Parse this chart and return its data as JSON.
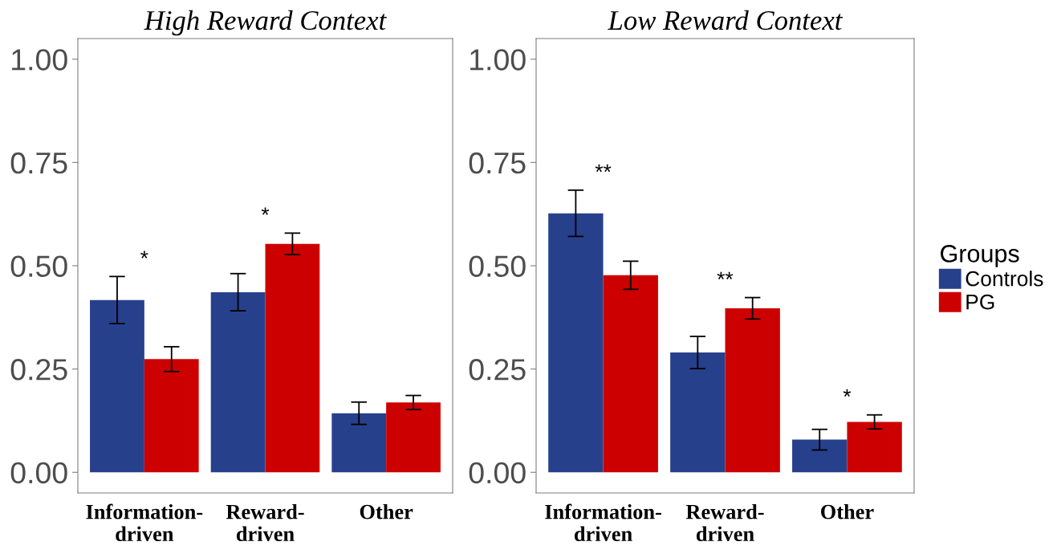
{
  "chart_data": [
    {
      "type": "bar",
      "title": "High Reward Context",
      "categories": [
        "Information-\ndriven",
        "Reward-\ndriven",
        "Other"
      ],
      "series": [
        {
          "color": "#27408b",
          "values": [
            0.417,
            0.436,
            0.143
          ],
          "errors": [
            0.057,
            0.045,
            0.027
          ]
        },
        {
          "color": "#cd0000",
          "values": [
            0.274,
            0.553,
            0.169
          ],
          "errors": [
            0.03,
            0.026,
            0.017
          ]
        }
      ],
      "ylim": [
        -0.05,
        1.05
      ],
      "yticks": [
        {
          "value": 0,
          "label": "0.00"
        },
        {
          "value": 0.25,
          "label": "0.25"
        },
        {
          "value": 0.5,
          "label": "0.50"
        },
        {
          "value": 0.75,
          "label": "0.75"
        },
        {
          "value": 1,
          "label": "1.00"
        }
      ],
      "annotations": [
        "*",
        "*"
      ],
      "grid": false
    },
    {
      "type": "bar",
      "title": "Low Reward Context",
      "categories": [
        "Information-\ndriven",
        "Reward-\ndriven",
        "Other"
      ],
      "series": [
        {
          "name": "Controls",
          "color": "#27408b",
          "values": [
            0.627,
            0.29,
            0.079
          ],
          "errors": [
            0.056,
            0.039,
            0.025
          ]
        },
        {
          "name": "PG",
          "color": "#cd0000",
          "values": [
            0.477,
            0.397,
            0.122
          ],
          "errors": [
            0.034,
            0.026,
            0.017
          ]
        }
      ],
      "ylim": [
        -0.05,
        1.05
      ],
      "yticks": [
        {
          "value": 0,
          "label": "0.00"
        },
        {
          "value": 0.25,
          "label": "0.25"
        },
        {
          "value": 0.5,
          "label": "0.50"
        },
        {
          "value": 0.75,
          "label": "0.75"
        },
        {
          "value": 1,
          "label": "1.00"
        }
      ],
      "annotations": [
        "**",
        "**",
        "*"
      ],
      "grid": false,
      "legend": "right",
      "legend_title": "Groups"
    }
  ]
}
